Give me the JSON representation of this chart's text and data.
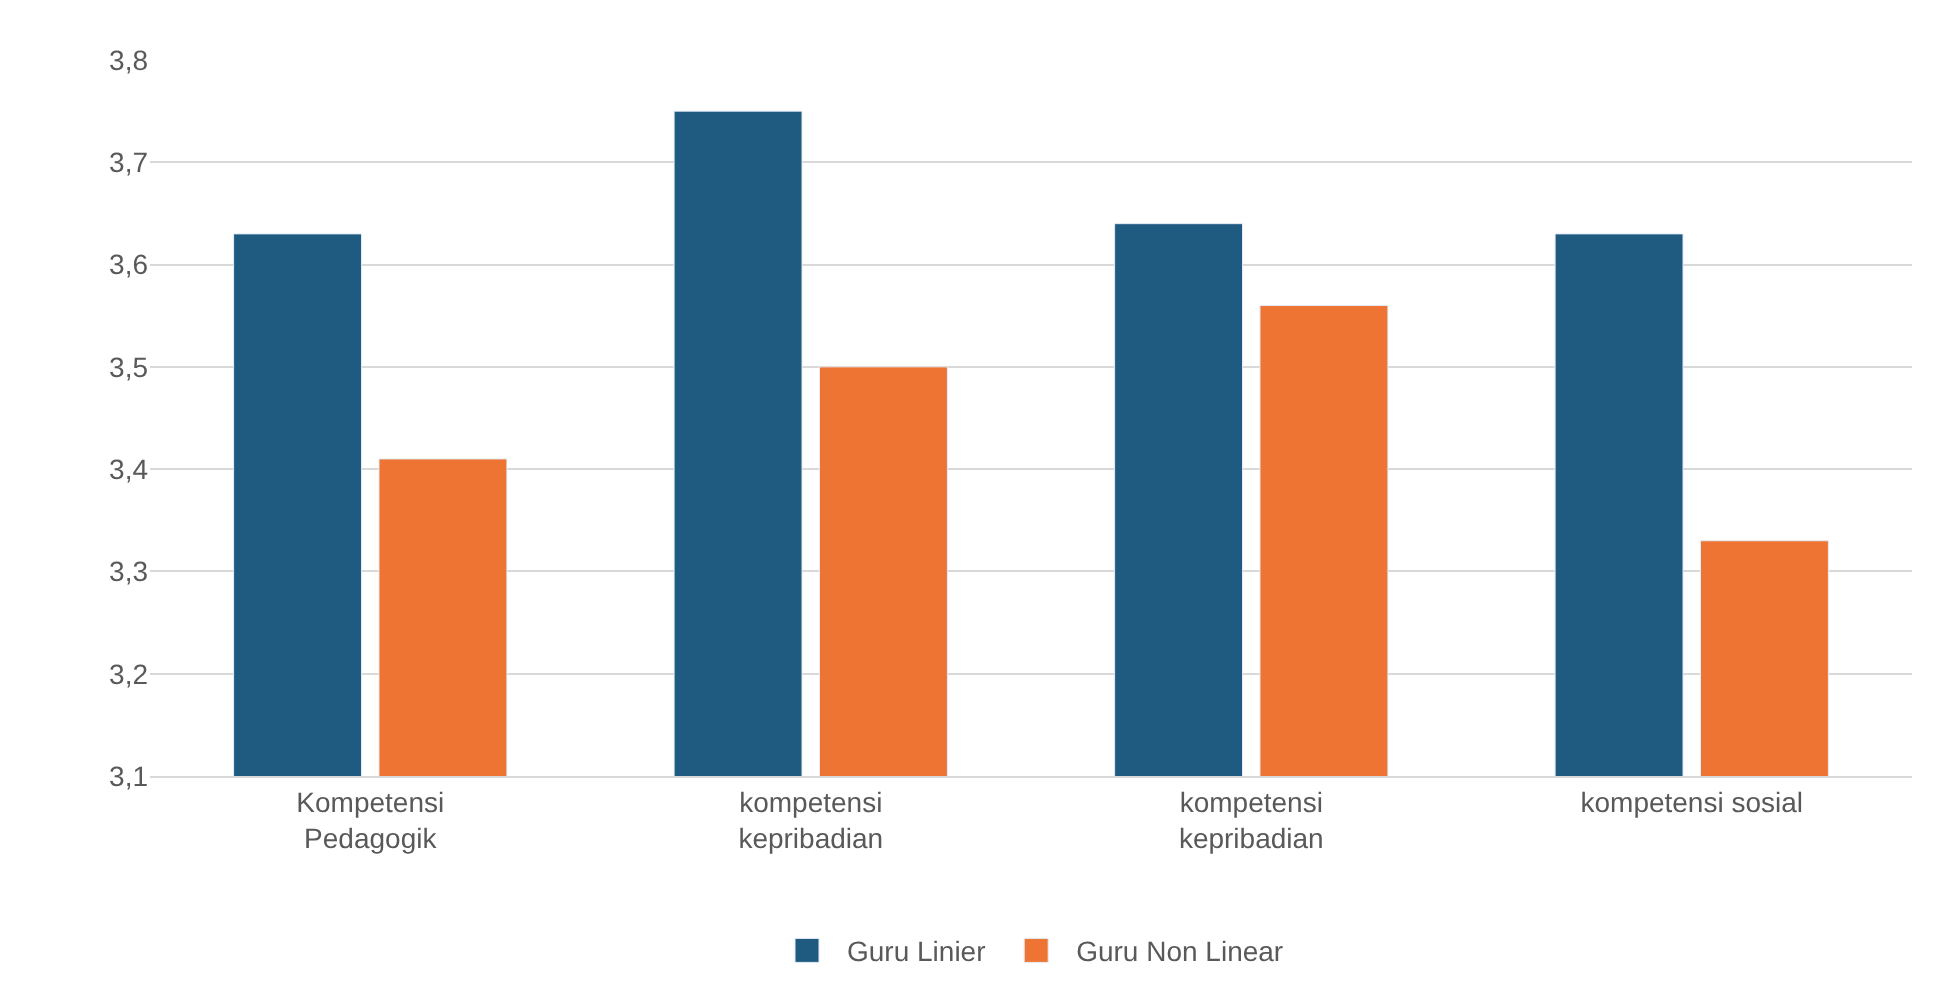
{
  "chart_data": {
    "type": "bar",
    "categories": [
      "Kompetensi Pedagogik",
      "kompetensi kepribadian",
      "kompetensi kepribadian",
      "kompetensi sosial"
    ],
    "series": [
      {
        "name": "Guru Linier",
        "color": "#1f5b80",
        "values": [
          3.63,
          3.75,
          3.64,
          3.63
        ]
      },
      {
        "name": "Guru Non Linear",
        "color": "#ed7433",
        "values": [
          3.41,
          3.5,
          3.56,
          3.33
        ]
      }
    ],
    "ylim": [
      3.1,
      3.8
    ],
    "yticks": [
      {
        "value": 3.1,
        "label": "3,1"
      },
      {
        "value": 3.2,
        "label": "3,2"
      },
      {
        "value": 3.3,
        "label": "3,3"
      },
      {
        "value": 3.4,
        "label": "3,4"
      },
      {
        "value": 3.5,
        "label": "3,5"
      },
      {
        "value": 3.6,
        "label": "3,6"
      },
      {
        "value": 3.7,
        "label": "3,7"
      },
      {
        "value": 3.8,
        "label": "3,8"
      }
    ],
    "grid": "y",
    "legend": "bottom"
  }
}
